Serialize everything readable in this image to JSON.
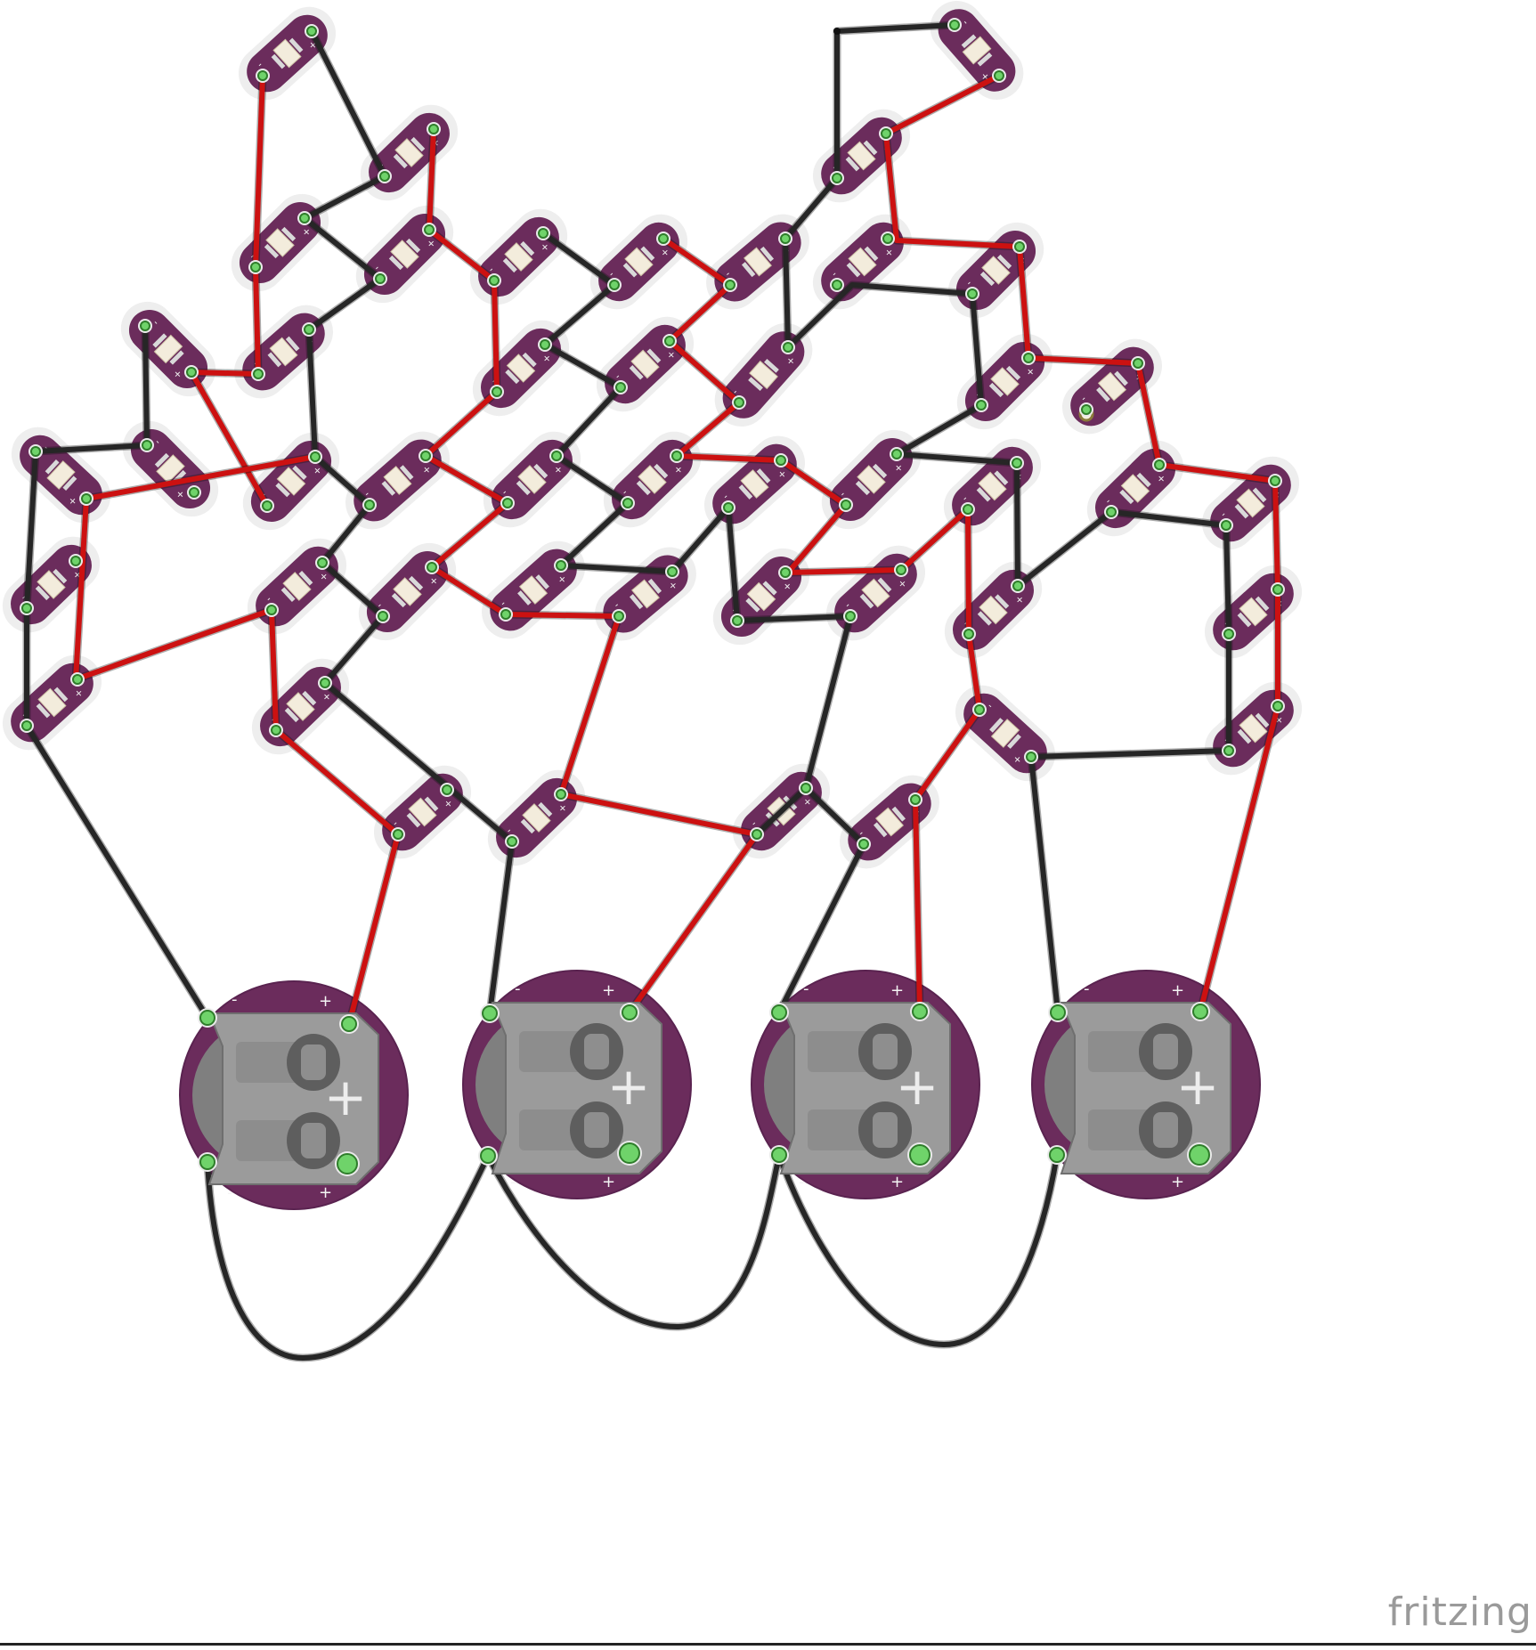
{
  "app": {
    "watermark": "fritzing"
  },
  "colors": {
    "board": "#6b2c5c",
    "board_edge": "#5a2350",
    "halo": "#eeeeee",
    "pad": "#6fd36a",
    "pad_ring": "#2f7d2b",
    "wire_red": "#cc1111",
    "wire_black": "#262626",
    "holder": "#9b9b9b",
    "holder_dark": "#7f7f7f",
    "led_body": "#f3ecdc"
  },
  "labels": {
    "minus": "-",
    "plus": "+",
    "big_plus": "+"
  },
  "battery_holders": [
    {
      "id": "battery-1"
    },
    {
      "id": "battery-2"
    },
    {
      "id": "battery-3"
    },
    {
      "id": "battery-4"
    }
  ],
  "led_count": 48
}
